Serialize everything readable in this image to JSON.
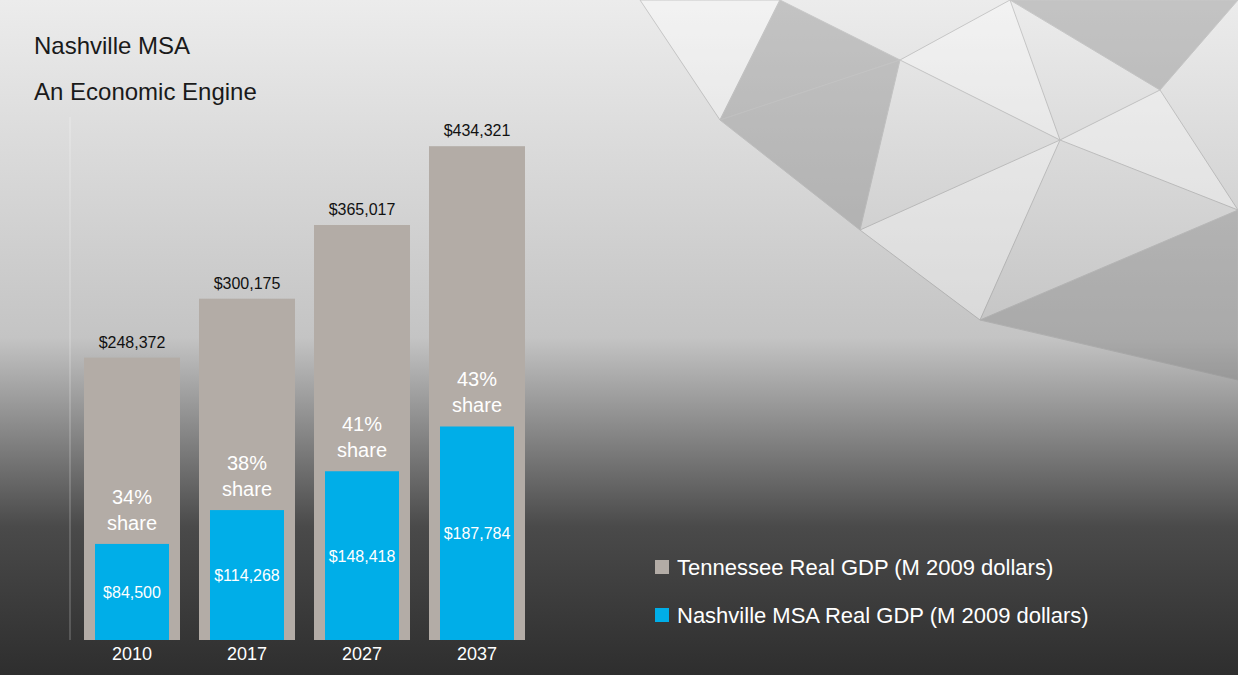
{
  "chart_data": {
    "type": "bar",
    "title": "Nashville MSA",
    "subtitle": "An Economic Engine",
    "categories": [
      "2010",
      "2017",
      "2027",
      "2037"
    ],
    "series": [
      {
        "name": "Tennessee Real GDP (M 2009 dollars)",
        "color": "#b3aca6",
        "values": [
          248372,
          300175,
          365017,
          434321
        ],
        "value_labels": [
          "$248,372",
          "$300,175",
          "$365,017",
          "$434,321"
        ]
      },
      {
        "name": "Nashville MSA Real GDP (M 2009 dollars)",
        "color": "#00aee8",
        "values": [
          84500,
          114268,
          148418,
          187784
        ],
        "value_labels": [
          "$84,500",
          "$114,268",
          "$148,418",
          "$187,784"
        ]
      }
    ],
    "shares": {
      "values": [
        34,
        38,
        41,
        43
      ],
      "value_labels": [
        "34%",
        "38%",
        "41%",
        "43%"
      ],
      "label": "share"
    },
    "ylim": [
      0,
      460000
    ],
    "stacked": false,
    "data_labels": true,
    "legend": "lower right",
    "tick_labels": "x",
    "grid": false
  }
}
